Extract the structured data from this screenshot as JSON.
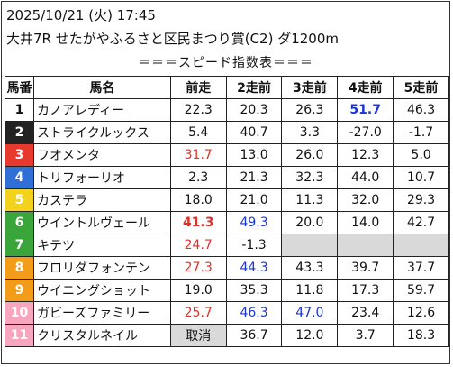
{
  "header": {
    "datetime": "2025/10/21 (火) 17:45",
    "race": "大井7R せたがやふるさと区民まつり賞(C2) ダ1200m",
    "subtitle": "＝＝＝スピード指数表＝＝＝"
  },
  "columns": [
    "馬番",
    "馬名",
    "前走",
    "2走前",
    "3走前",
    "4走前",
    "5走前"
  ],
  "colors": {
    "red": "#e0302a",
    "blue": "#1a33e0",
    "gate_1": "#ffffff",
    "gate_2": "#222222",
    "gate_3": "#e8392e",
    "gate_4": "#2f6fd6",
    "gate_5": "#f2d21c",
    "gate_6": "#3aa53a",
    "gate_7": "#f39c1a",
    "gate_8": "#f7a6bd"
  },
  "rows": [
    {
      "no": "1",
      "name": "カノアレディー",
      "bg": "#ffffff",
      "fg": "#111111",
      "vals": [
        {
          "t": "22.3"
        },
        {
          "t": "20.3"
        },
        {
          "t": "26.3"
        },
        {
          "t": "51.7",
          "c": "blue",
          "b": true
        },
        {
          "t": "46.3"
        }
      ]
    },
    {
      "no": "2",
      "name": "ストライクルックス",
      "bg": "#222222",
      "fg": "#ffffff",
      "vals": [
        {
          "t": "5.4"
        },
        {
          "t": "40.7"
        },
        {
          "t": "3.3"
        },
        {
          "t": "-27.0"
        },
        {
          "t": "-1.7"
        }
      ]
    },
    {
      "no": "3",
      "name": "フオメンタ",
      "bg": "#e8392e",
      "fg": "#ffffff",
      "vals": [
        {
          "t": "31.7",
          "c": "red"
        },
        {
          "t": "13.0"
        },
        {
          "t": "26.0"
        },
        {
          "t": "12.3"
        },
        {
          "t": "5.0"
        }
      ]
    },
    {
      "no": "4",
      "name": "トリフォーリオ",
      "bg": "#2f6fd6",
      "fg": "#ffffff",
      "vals": [
        {
          "t": "2.3"
        },
        {
          "t": "21.3"
        },
        {
          "t": "32.3"
        },
        {
          "t": "44.0"
        },
        {
          "t": "10.7"
        }
      ]
    },
    {
      "no": "5",
      "name": "カステラ",
      "bg": "#f2d21c",
      "fg": "#ffffff",
      "vals": [
        {
          "t": "18.0"
        },
        {
          "t": "21.0"
        },
        {
          "t": "11.3"
        },
        {
          "t": "32.0"
        },
        {
          "t": "29.3"
        }
      ]
    },
    {
      "no": "6",
      "name": "ウイントルヴェール",
      "bg": "#3aa53a",
      "fg": "#ffffff",
      "vals": [
        {
          "t": "41.3",
          "c": "red",
          "b": true
        },
        {
          "t": "49.3",
          "c": "blue"
        },
        {
          "t": "20.0"
        },
        {
          "t": "14.0"
        },
        {
          "t": "42.7"
        }
      ]
    },
    {
      "no": "7",
      "name": "キテツ",
      "bg": "#3aa53a",
      "fg": "#ffffff",
      "vals": [
        {
          "t": "24.7",
          "c": "red"
        },
        {
          "t": "-1.3"
        },
        {
          "t": "",
          "grey": true
        },
        {
          "t": "",
          "grey": true
        },
        {
          "t": "",
          "grey": true
        }
      ]
    },
    {
      "no": "8",
      "name": "フロリダフォンテン",
      "bg": "#f39c1a",
      "fg": "#ffffff",
      "vals": [
        {
          "t": "27.3",
          "c": "red"
        },
        {
          "t": "44.3",
          "c": "blue"
        },
        {
          "t": "43.3"
        },
        {
          "t": "39.7"
        },
        {
          "t": "37.7"
        }
      ]
    },
    {
      "no": "9",
      "name": "ウイニングショット",
      "bg": "#f39c1a",
      "fg": "#ffffff",
      "vals": [
        {
          "t": "19.0"
        },
        {
          "t": "35.3"
        },
        {
          "t": "11.8"
        },
        {
          "t": "17.3"
        },
        {
          "t": "59.7"
        }
      ]
    },
    {
      "no": "10",
      "name": "ガビーズファミリー",
      "bg": "#f7a6bd",
      "fg": "#ffffff",
      "vals": [
        {
          "t": "25.7",
          "c": "red"
        },
        {
          "t": "46.3",
          "c": "blue"
        },
        {
          "t": "47.0",
          "c": "blue"
        },
        {
          "t": "23.4"
        },
        {
          "t": "12.6"
        }
      ]
    },
    {
      "no": "11",
      "name": "クリスタルネイル",
      "bg": "#f7a6bd",
      "fg": "#ffffff",
      "vals": [
        {
          "t": "取消",
          "grey": true
        },
        {
          "t": "36.7"
        },
        {
          "t": "12.0"
        },
        {
          "t": "3.7"
        },
        {
          "t": "18.3"
        }
      ]
    }
  ]
}
